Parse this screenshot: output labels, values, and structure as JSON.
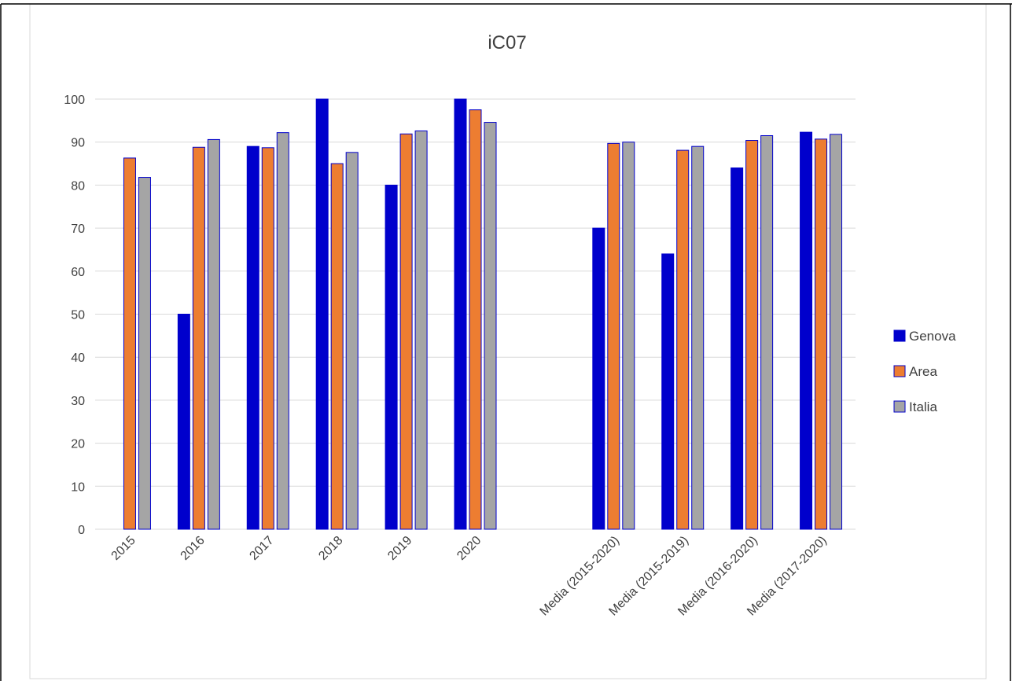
{
  "chart_data": {
    "type": "bar",
    "title": "iC07",
    "xlabel": "",
    "ylabel": "",
    "ylim": [
      0,
      100
    ],
    "yticks": [
      0,
      10,
      20,
      30,
      40,
      50,
      60,
      70,
      80,
      90,
      100
    ],
    "categories": [
      "2015",
      "2016",
      "2017",
      "2018",
      "2019",
      "2020",
      "",
      "Media (2015-2020)",
      "Media (2015-2019)",
      "Media (2016-2020)",
      "Media (2017-2020)"
    ],
    "series": [
      {
        "name": "Genova",
        "color": "#0000cc",
        "values": [
          0,
          50,
          89,
          100,
          80,
          100,
          null,
          70,
          64,
          84,
          92.3
        ]
      },
      {
        "name": "Area",
        "color": "#ed7d31",
        "values": [
          86.3,
          88.8,
          88.7,
          85,
          91.9,
          97.5,
          null,
          89.7,
          88.1,
          90.4,
          90.7
        ]
      },
      {
        "name": "Italia",
        "color": "#a5a5a5",
        "values": [
          81.8,
          90.6,
          92.2,
          87.6,
          92.6,
          94.6,
          null,
          90,
          89,
          91.5,
          91.8
        ]
      }
    ],
    "grid": true,
    "legend": "right"
  }
}
